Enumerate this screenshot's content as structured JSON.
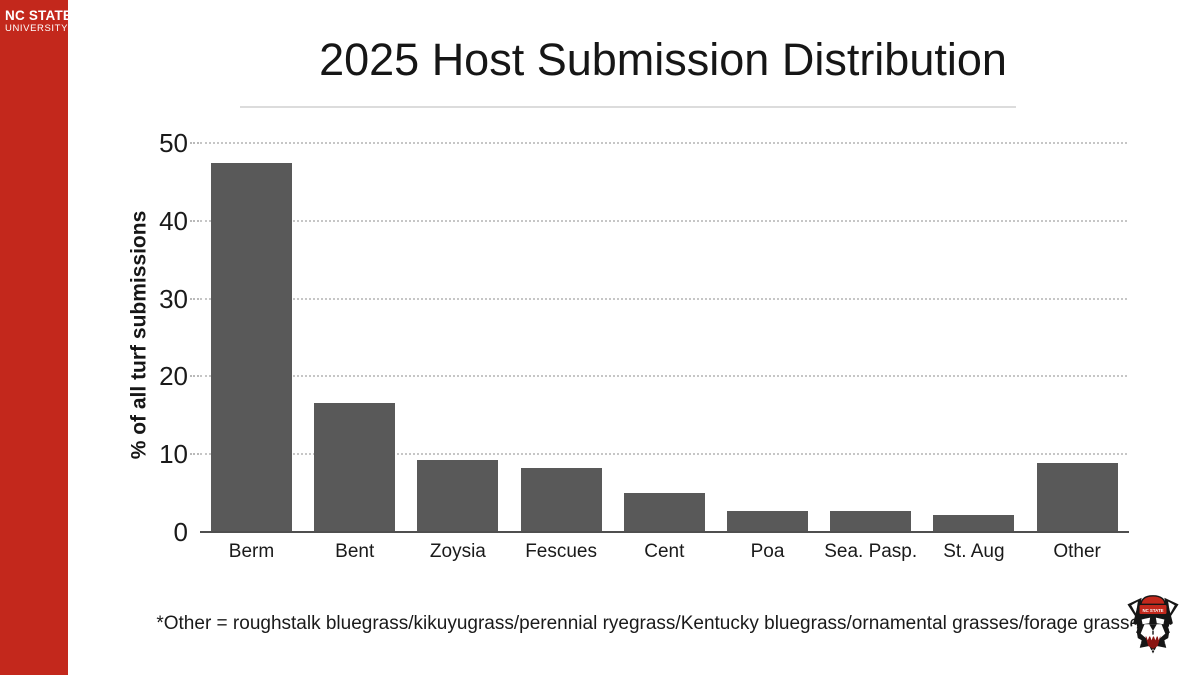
{
  "sidebar": {
    "brand_line1": "NC STATE",
    "brand_line2": "UNIVERSITY"
  },
  "title": "2025 Host Submission Distribution",
  "footnote": "*Other = roughstalk bluegrass/kikuyugrass/perennial ryegrass/Kentucky bluegrass/ornamental grasses/forage grasses",
  "logo": {
    "name": "nc-state-wolf-mascot",
    "cap_text": "NC STATE"
  },
  "colors": {
    "brand_red": "#c3281c",
    "bar": "#595959",
    "gridline": "#c6c6c6",
    "axis": "#4f4f4f",
    "text": "#1a1a1a"
  },
  "chart_data": {
    "type": "bar",
    "title": "2025 Host Submission Distribution",
    "categories": [
      "Berm",
      "Bent",
      "Zoysia",
      "Fescues",
      "Cent",
      "Poa",
      "Sea. Pasp.",
      "St. Aug",
      "Other"
    ],
    "values": [
      47.3,
      16.4,
      9.1,
      8.1,
      4.9,
      2.6,
      2.6,
      2.1,
      8.7
    ],
    "xlabel": "",
    "ylabel": "% of all turf submissions",
    "ylim": [
      0,
      50
    ],
    "yticks": [
      0,
      10,
      20,
      30,
      40,
      50
    ],
    "grid": "horizontal-dotted",
    "legend": "none",
    "bar_color": "#595959"
  }
}
